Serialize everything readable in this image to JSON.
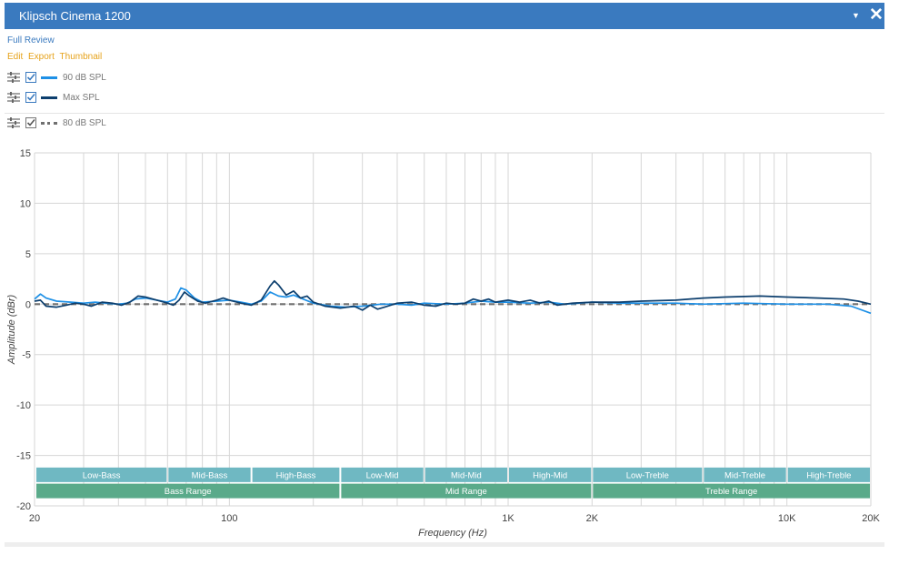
{
  "window": {
    "title": "Klipsch Cinema 1200"
  },
  "links": {
    "full_review": "Full Review",
    "edit": "Edit",
    "export": "Export",
    "thumbnail": "Thumbnail"
  },
  "legend": [
    {
      "label": "90 dB SPL",
      "color": "#1e90e6",
      "style": "solid"
    },
    {
      "label": "Max SPL",
      "color": "#0d3f6e",
      "style": "solid"
    },
    {
      "label": "80 dB SPL",
      "color": "#707070",
      "style": "dashed"
    }
  ],
  "colors": {
    "band_top": "#6fb8c2",
    "band_bottom": "#5aaa8a",
    "grid": "#d6d6d6"
  },
  "chart_data": {
    "type": "line",
    "title": "",
    "xlabel": "Frequency (Hz)",
    "ylabel": "Amplitude (dBr)",
    "xscale": "log",
    "xlim": [
      20,
      20000
    ],
    "ylim": [
      -20,
      15
    ],
    "y_ticks": [
      15,
      10,
      5,
      0,
      -5,
      -10,
      -15,
      -20
    ],
    "x_ticks": [
      {
        "value": 20,
        "label": "20"
      },
      {
        "value": 100,
        "label": "100"
      },
      {
        "value": 1000,
        "label": "1K"
      },
      {
        "value": 2000,
        "label": "2K"
      },
      {
        "value": 10000,
        "label": "10K"
      },
      {
        "value": 20000,
        "label": "20K"
      }
    ],
    "series": [
      {
        "name": "90 dB SPL",
        "points": [
          [
            20,
            0.5
          ],
          [
            21,
            1.0
          ],
          [
            22,
            0.6
          ],
          [
            24,
            0.3
          ],
          [
            27,
            0.2
          ],
          [
            30,
            0.1
          ],
          [
            33,
            0.2
          ],
          [
            36,
            0.1
          ],
          [
            40,
            0.0
          ],
          [
            43,
            0.1
          ],
          [
            46,
            0.5
          ],
          [
            50,
            0.6
          ],
          [
            55,
            0.4
          ],
          [
            60,
            0.2
          ],
          [
            64,
            0.5
          ],
          [
            67,
            1.6
          ],
          [
            70,
            1.4
          ],
          [
            75,
            0.6
          ],
          [
            80,
            0.2
          ],
          [
            90,
            0.3
          ],
          [
            100,
            0.4
          ],
          [
            110,
            0.2
          ],
          [
            120,
            0.0
          ],
          [
            130,
            0.3
          ],
          [
            140,
            1.2
          ],
          [
            150,
            0.8
          ],
          [
            160,
            0.7
          ],
          [
            170,
            0.9
          ],
          [
            180,
            0.6
          ],
          [
            200,
            0.1
          ],
          [
            230,
            -0.2
          ],
          [
            260,
            -0.3
          ],
          [
            300,
            -0.2
          ],
          [
            350,
            0.0
          ],
          [
            400,
            0.0
          ],
          [
            450,
            -0.1
          ],
          [
            500,
            0.1
          ],
          [
            600,
            0.0
          ],
          [
            700,
            0.1
          ],
          [
            800,
            0.3
          ],
          [
            900,
            0.2
          ],
          [
            1000,
            0.2
          ],
          [
            1200,
            0.1
          ],
          [
            1400,
            0.2
          ],
          [
            1600,
            0.0
          ],
          [
            2000,
            0.2
          ],
          [
            2500,
            0.1
          ],
          [
            3000,
            0.1
          ],
          [
            4000,
            0.1
          ],
          [
            5000,
            0.0
          ],
          [
            7000,
            0.1
          ],
          [
            10000,
            0.0
          ],
          [
            14000,
            0.0
          ],
          [
            17000,
            -0.2
          ],
          [
            20000,
            -0.9
          ]
        ]
      },
      {
        "name": "Max SPL",
        "points": [
          [
            20,
            0.3
          ],
          [
            21,
            0.4
          ],
          [
            22,
            -0.2
          ],
          [
            24,
            -0.3
          ],
          [
            26,
            -0.1
          ],
          [
            28,
            0.1
          ],
          [
            30,
            0.0
          ],
          [
            32,
            -0.2
          ],
          [
            35,
            0.2
          ],
          [
            38,
            0.1
          ],
          [
            41,
            -0.1
          ],
          [
            44,
            0.2
          ],
          [
            47,
            0.8
          ],
          [
            50,
            0.7
          ],
          [
            55,
            0.4
          ],
          [
            60,
            0.1
          ],
          [
            63,
            -0.1
          ],
          [
            66,
            0.4
          ],
          [
            69,
            1.2
          ],
          [
            72,
            0.8
          ],
          [
            77,
            0.3
          ],
          [
            82,
            0.1
          ],
          [
            90,
            0.4
          ],
          [
            95,
            0.6
          ],
          [
            100,
            0.4
          ],
          [
            110,
            0.1
          ],
          [
            120,
            -0.1
          ],
          [
            130,
            0.4
          ],
          [
            140,
            1.8
          ],
          [
            145,
            2.3
          ],
          [
            150,
            1.9
          ],
          [
            160,
            0.9
          ],
          [
            170,
            1.3
          ],
          [
            180,
            0.6
          ],
          [
            190,
            0.8
          ],
          [
            200,
            0.2
          ],
          [
            220,
            -0.2
          ],
          [
            250,
            -0.4
          ],
          [
            280,
            -0.2
          ],
          [
            300,
            -0.6
          ],
          [
            320,
            -0.1
          ],
          [
            340,
            -0.5
          ],
          [
            360,
            -0.3
          ],
          [
            400,
            0.1
          ],
          [
            450,
            0.2
          ],
          [
            500,
            -0.1
          ],
          [
            550,
            -0.2
          ],
          [
            600,
            0.1
          ],
          [
            650,
            0.0
          ],
          [
            700,
            0.1
          ],
          [
            750,
            0.5
          ],
          [
            800,
            0.3
          ],
          [
            850,
            0.5
          ],
          [
            900,
            0.2
          ],
          [
            1000,
            0.4
          ],
          [
            1100,
            0.2
          ],
          [
            1200,
            0.4
          ],
          [
            1300,
            0.1
          ],
          [
            1400,
            0.3
          ],
          [
            1500,
            -0.1
          ],
          [
            1700,
            0.1
          ],
          [
            2000,
            0.2
          ],
          [
            2500,
            0.2
          ],
          [
            3000,
            0.3
          ],
          [
            4000,
            0.4
          ],
          [
            5000,
            0.6
          ],
          [
            6000,
            0.7
          ],
          [
            8000,
            0.8
          ],
          [
            10000,
            0.7
          ],
          [
            13000,
            0.6
          ],
          [
            16000,
            0.5
          ],
          [
            18000,
            0.3
          ],
          [
            20000,
            0.0
          ]
        ]
      },
      {
        "name": "80 dB SPL",
        "dashed": true,
        "points": [
          [
            20,
            0
          ],
          [
            20000,
            0
          ]
        ]
      }
    ],
    "bands": [
      {
        "label": "Low-Bass",
        "row": 0,
        "from": 20,
        "to": 60
      },
      {
        "label": "Mid-Bass",
        "row": 0,
        "from": 60,
        "to": 120
      },
      {
        "label": "High-Bass",
        "row": 0,
        "from": 120,
        "to": 250
      },
      {
        "label": "Low-Mid",
        "row": 0,
        "from": 250,
        "to": 500
      },
      {
        "label": "Mid-Mid",
        "row": 0,
        "from": 500,
        "to": 1000
      },
      {
        "label": "High-Mid",
        "row": 0,
        "from": 1000,
        "to": 2000
      },
      {
        "label": "Low-Treble",
        "row": 0,
        "from": 2000,
        "to": 5000
      },
      {
        "label": "Mid-Treble",
        "row": 0,
        "from": 5000,
        "to": 10000
      },
      {
        "label": "High-Treble",
        "row": 0,
        "from": 10000,
        "to": 20000
      },
      {
        "label": "Bass Range",
        "row": 1,
        "from": 20,
        "to": 250
      },
      {
        "label": "Mid Range",
        "row": 1,
        "from": 250,
        "to": 2000
      },
      {
        "label": "Treble Range",
        "row": 1,
        "from": 2000,
        "to": 20000
      }
    ]
  }
}
